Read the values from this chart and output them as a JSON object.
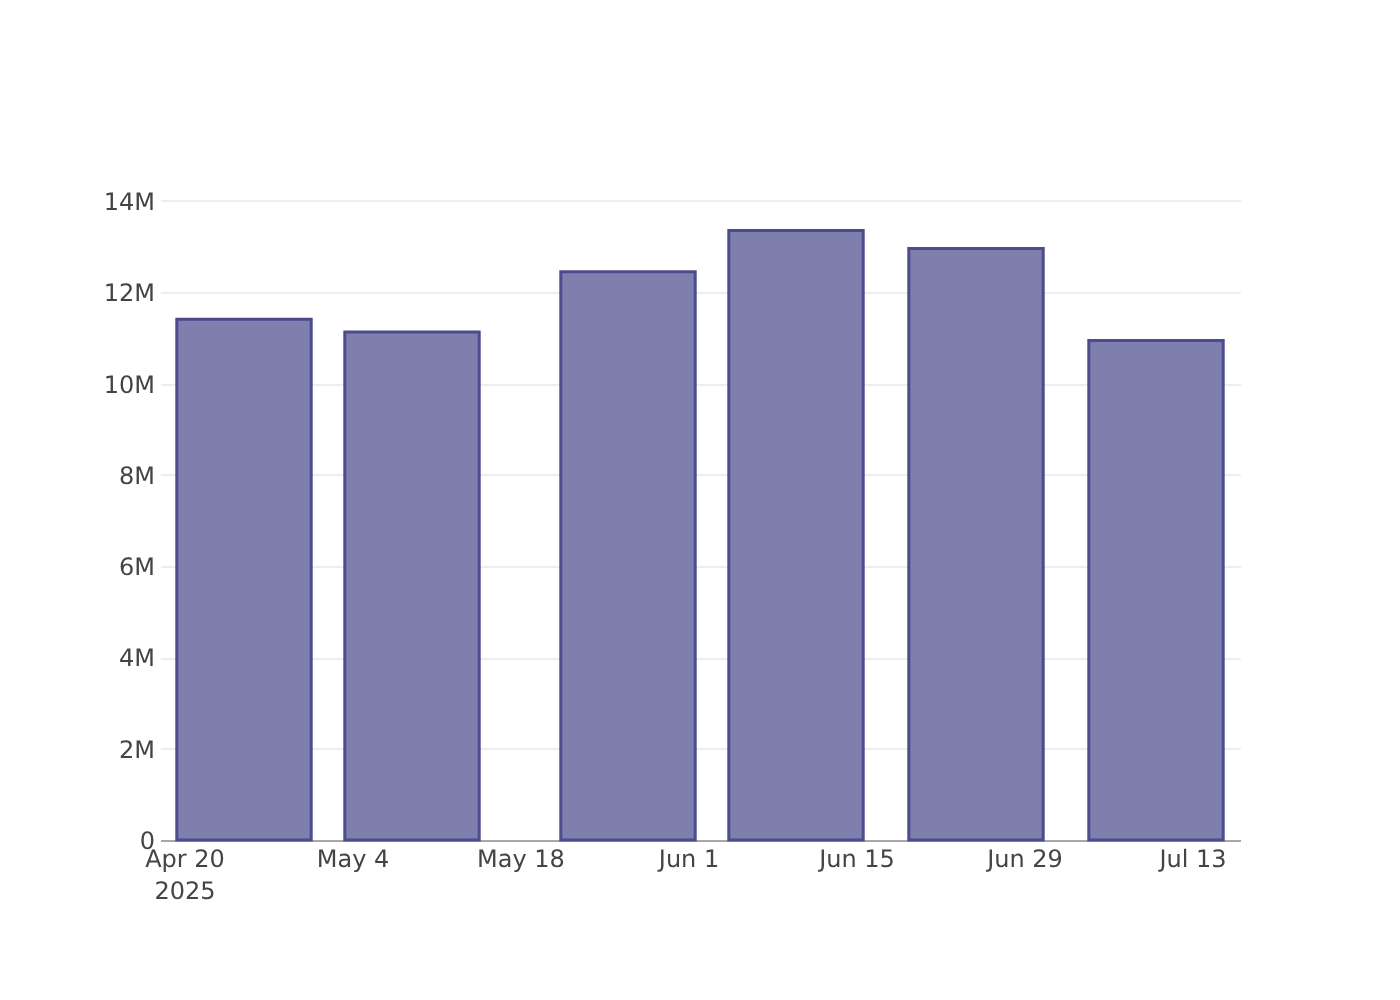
{
  "chart_data": {
    "type": "bar",
    "x": [
      "2025-04-25",
      "2025-05-09",
      "2025-05-27",
      "2025-06-10",
      "2025-06-25",
      "2025-07-10"
    ],
    "values": [
      11410000,
      11130000,
      12450000,
      13350000,
      12960000,
      10940000
    ],
    "color": "#7f7fae",
    "xlim": [
      "2025-04-18",
      "2025-07-17"
    ],
    "xticks": [
      {
        "value": "2025-04-20",
        "label": "Apr 20\n2025"
      },
      {
        "value": "2025-05-04",
        "label": "May 4"
      },
      {
        "value": "2025-05-18",
        "label": "May 18"
      },
      {
        "value": "2025-06-01",
        "label": "Jun 1"
      },
      {
        "value": "2025-06-15",
        "label": "Jun 15"
      },
      {
        "value": "2025-06-29",
        "label": "Jun 29"
      },
      {
        "value": "2025-07-13",
        "label": "Jul 13"
      }
    ],
    "ylim": [
      0,
      14020000
    ],
    "yticks": [
      0,
      {
        "value": 2000000,
        "label": "2M"
      },
      {
        "value": 4000000,
        "label": "4M"
      },
      {
        "value": 6000000,
        "label": "6M"
      },
      {
        "value": 8000000,
        "label": "8M"
      },
      {
        "value": 10000000,
        "label": "10M"
      },
      {
        "value": 12000000,
        "label": "12M"
      },
      {
        "value": 14000000,
        "label": "14M"
      }
    ],
    "grid": "y"
  }
}
